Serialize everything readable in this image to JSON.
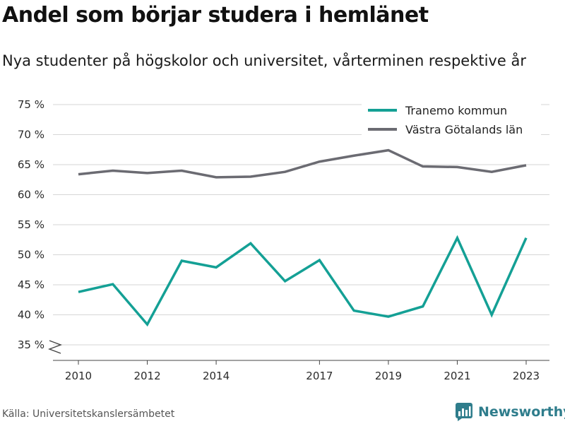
{
  "header": {
    "title": "Andel som börjar studera i hemlänet",
    "subtitle": "Nya studenter på högskolor och universitet, vårterminen respektive år"
  },
  "footer": {
    "source": "Källa: Universitetskanslersämbetet",
    "brand": "Newsworthy"
  },
  "colors": {
    "series_tranemo": "#14a095",
    "series_vg": "#6b6b72",
    "grid": "#d6d6d6",
    "brand": "#2f7d8c"
  },
  "chart_data": {
    "type": "line",
    "title": "Andel som börjar studera i hemlänet",
    "subtitle": "Nya studenter på högskolor och universitet, vårterminen respektive år",
    "xlabel": "",
    "ylabel": "",
    "x": [
      2010,
      2011,
      2012,
      2013,
      2014,
      2015,
      2016,
      2017,
      2018,
      2019,
      2020,
      2021,
      2022,
      2023
    ],
    "xticks": [
      2010,
      2012,
      2014,
      2017,
      2019,
      2021,
      2023
    ],
    "xlim": [
      2009.4,
      2023.7
    ],
    "yticks": [
      35,
      40,
      45,
      50,
      55,
      60,
      65,
      70,
      75
    ],
    "ytick_labels": [
      "35 %",
      "40 %",
      "45 %",
      "50 %",
      "55 %",
      "60 %",
      "65 %",
      "70 %",
      "75 %"
    ],
    "ylim": [
      33,
      75
    ],
    "y_axis_break": true,
    "grid": true,
    "legend_position": "top-right",
    "series": [
      {
        "name": "Tranemo kommun",
        "color": "#14a095",
        "values": [
          43.8,
          45.1,
          38.4,
          49.0,
          47.9,
          51.9,
          45.6,
          49.1,
          40.7,
          39.7,
          41.4,
          52.8,
          40.0,
          52.8
        ]
      },
      {
        "name": "Västra Götalands län",
        "color": "#6b6b72",
        "values": [
          63.4,
          64.0,
          63.6,
          64.0,
          62.9,
          63.0,
          63.8,
          65.5,
          66.5,
          67.4,
          64.7,
          64.6,
          63.8,
          64.9
        ]
      }
    ]
  }
}
